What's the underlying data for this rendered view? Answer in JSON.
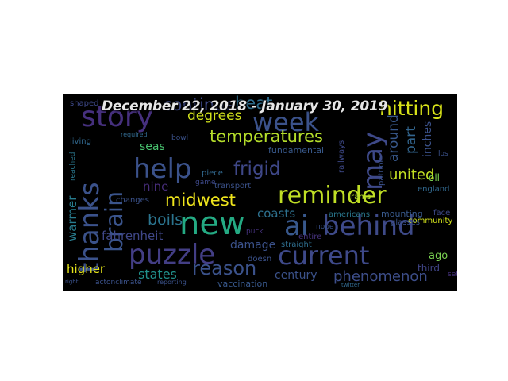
{
  "title": "December 22, 2018 - January 30, 2019",
  "words": [
    {
      "text": "story",
      "c": "#46307e",
      "fs": 36
    },
    {
      "text": "week",
      "c": "#3b528b",
      "fs": 32
    },
    {
      "text": "hitting",
      "c": "#d8e219",
      "fs": 25
    },
    {
      "text": "continue",
      "c": "#3e4a89",
      "fs": 21
    },
    {
      "text": "heat",
      "c": "#2e6e8e",
      "fs": 21
    },
    {
      "text": "thanks",
      "c": "#3b528b",
      "fs": 34,
      "v": 1
    },
    {
      "text": "brain",
      "c": "#3a548c",
      "fs": 30,
      "v": 1
    },
    {
      "text": "help",
      "c": "#3b528b",
      "fs": 34
    },
    {
      "text": "temperatures",
      "c": "#b5de2b",
      "fs": 21
    },
    {
      "text": "degrees",
      "c": "#d0e11c",
      "fs": 17
    },
    {
      "text": "frigid",
      "c": "#3f4889",
      "fs": 23
    },
    {
      "text": "may",
      "c": "#3e4989",
      "fs": 34,
      "v": 1
    },
    {
      "text": "around",
      "c": "#38588c",
      "fs": 17,
      "v": 1
    },
    {
      "text": "part",
      "c": "#32658e",
      "fs": 17,
      "v": 1
    },
    {
      "text": "inches",
      "c": "#3b528b",
      "fs": 14,
      "v": 1
    },
    {
      "text": "united",
      "c": "#c2df23",
      "fs": 18
    },
    {
      "text": "reminder",
      "c": "#c0df25",
      "fs": 30
    },
    {
      "text": "midwest",
      "c": "#efe51c",
      "fs": 21
    },
    {
      "text": "new",
      "c": "#24aa83",
      "fs": 40
    },
    {
      "text": "ai",
      "c": "#38588c",
      "fs": 34
    },
    {
      "text": "behind",
      "c": "#3e4a89",
      "fs": 34
    },
    {
      "text": "puzzle",
      "c": "#433e85",
      "fs": 34
    },
    {
      "text": "current",
      "c": "#3e4989",
      "fs": 32
    },
    {
      "text": "reason",
      "c": "#3b528b",
      "fs": 24
    },
    {
      "text": "states",
      "c": "#21918c",
      "fs": 16
    },
    {
      "text": "century",
      "c": "#3b528b",
      "fs": 14
    },
    {
      "text": "phenomenon",
      "c": "#3d4e8a",
      "fs": 18
    },
    {
      "text": "higher",
      "c": "#e5e419",
      "fs": 15
    },
    {
      "text": "fahrenheit",
      "c": "#3f4788",
      "fs": 15
    },
    {
      "text": "boils",
      "c": "#2b748e",
      "fs": 19
    },
    {
      "text": "warmer",
      "c": "#287c8e",
      "fs": 15,
      "v": 1
    },
    {
      "text": "nine",
      "c": "#472d7b",
      "fs": 15
    },
    {
      "text": "seas",
      "c": "#48c16e",
      "fs": 14
    },
    {
      "text": "coasts",
      "c": "#2d708e",
      "fs": 15
    },
    {
      "text": "damage",
      "c": "#3b528b",
      "fs": 14
    },
    {
      "text": "fundamental",
      "c": "#38598c",
      "fs": 11
    },
    {
      "text": "community",
      "c": "#d2e21b",
      "fs": 10
    },
    {
      "text": "ago",
      "c": "#7ad151",
      "fs": 13
    },
    {
      "text": "third",
      "c": "#404588",
      "fs": 12
    },
    {
      "text": "vaccination",
      "c": "#38588c",
      "fs": 11
    },
    {
      "text": "actonclimate",
      "c": "#3b528b",
      "fs": 9
    },
    {
      "text": "living",
      "c": "#31688e",
      "fs": 10
    },
    {
      "text": "shaped",
      "c": "#3e4989",
      "fs": 10
    },
    {
      "text": "transport",
      "c": "#3b528b",
      "fs": 10
    },
    {
      "text": "mounting",
      "c": "#38598c",
      "fs": 11
    },
    {
      "text": "americans",
      "c": "#2a788e",
      "fs": 10
    },
    {
      "text": "england",
      "c": "#31688e",
      "fs": 10
    },
    {
      "text": "face",
      "c": "#3e4989",
      "fs": 10
    },
    {
      "text": "glasses",
      "c": "#3b528b",
      "fs": 10
    },
    {
      "text": "straight",
      "c": "#2e6e8e",
      "fs": 10
    },
    {
      "text": "entire",
      "c": "#46327e",
      "fs": 10
    },
    {
      "text": "doesn",
      "c": "#3b528b",
      "fs": 10
    },
    {
      "text": "rams",
      "c": "#b5de2b",
      "fs": 10
    },
    {
      "text": "oil",
      "c": "#7ad151",
      "fs": 12
    },
    {
      "text": "los",
      "c": "#3b528b",
      "fs": 9
    },
    {
      "text": "piece",
      "c": "#31688e",
      "fs": 10
    },
    {
      "text": "game",
      "c": "#3e4989",
      "fs": 9
    },
    {
      "text": "bowl",
      "c": "#3b528b",
      "fs": 9
    },
    {
      "text": "puck",
      "c": "#46327e",
      "fs": 9
    },
    {
      "text": "reached",
      "c": "#2a788e",
      "fs": 9,
      "v": 1
    },
    {
      "text": "patriots",
      "c": "#3b528b",
      "fs": 10,
      "v": 1
    },
    {
      "text": "railways",
      "c": "#3e4989",
      "fs": 10,
      "v": 1
    },
    {
      "text": "changes",
      "c": "#3b528b",
      "fs": 10
    },
    {
      "text": "required",
      "c": "#31688e",
      "fs": 8
    },
    {
      "text": "nope",
      "c": "#3b528b",
      "fs": 9
    },
    {
      "text": "set",
      "c": "#46327e",
      "fs": 9
    },
    {
      "text": "reporting",
      "c": "#3b528b",
      "fs": 8
    },
    {
      "text": "twitter",
      "c": "#31688e",
      "fs": 7
    },
    {
      "text": "right",
      "c": "#3b528b",
      "fs": 7
    }
  ]
}
